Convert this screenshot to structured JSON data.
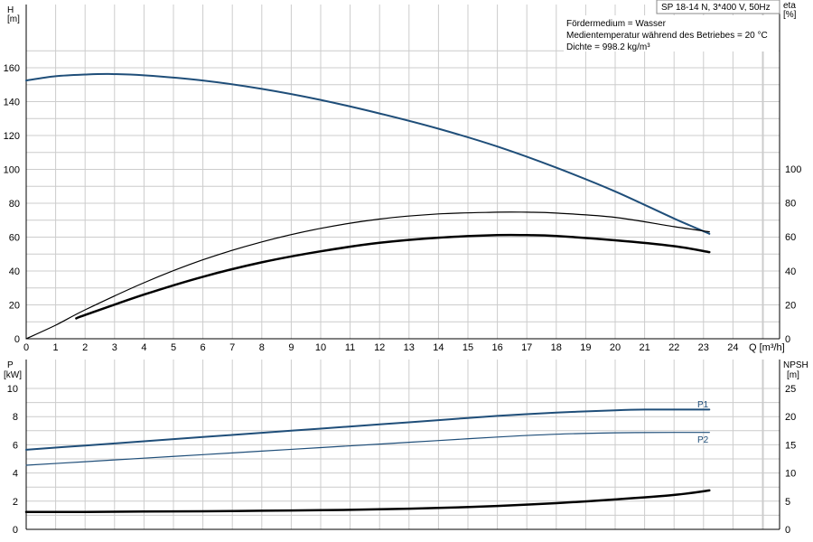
{
  "header": {
    "pump_title": "SP 18-14 N, 3*400 V, 50Hz",
    "info_lines": [
      "Fördermedium = Wasser",
      "Medientemperatur während des Betriebes = 20 °C",
      "Dichte = 998.2 kg/m³"
    ]
  },
  "colors": {
    "blue": "#1f4e79",
    "black": "#000000",
    "grid": "#cccccc"
  },
  "chart_data": [
    {
      "type": "line",
      "panel": "top",
      "x_label": "Q [m³/h]",
      "x_ticks": [
        "0",
        "1",
        "2",
        "3",
        "4",
        "5",
        "6",
        "7",
        "8",
        "9",
        "10",
        "11",
        "12",
        "13",
        "14",
        "15",
        "16",
        "17",
        "18",
        "19",
        "20",
        "21",
        "22",
        "23",
        "24"
      ],
      "xlim": [
        0,
        25.0
      ],
      "left_axis": {
        "label_line1": "H",
        "label_line2": "[m]",
        "ylim": [
          0,
          160
        ],
        "ticks": [
          "0",
          "20",
          "40",
          "60",
          "80",
          "100",
          "120",
          "140",
          "160"
        ]
      },
      "right_axis": {
        "label_line1": "eta",
        "label_line2": "[%]",
        "ylim": [
          0,
          100
        ],
        "ticks": [
          "0",
          "20",
          "40",
          "60",
          "80",
          "100"
        ]
      },
      "grid": true,
      "series": [
        {
          "key": "H",
          "axis": "left",
          "color": "#1f4e79",
          "width": 2,
          "x": [
            0,
            1,
            2,
            2.8,
            4,
            6,
            8,
            10,
            12,
            14,
            16,
            18,
            20,
            22,
            23.2
          ],
          "y": [
            152.5,
            155,
            156,
            156.3,
            155.5,
            152.5,
            147.5,
            141,
            133,
            124,
            113.5,
            101,
            87,
            71,
            62
          ]
        },
        {
          "key": "eta_total",
          "axis": "right",
          "color": "#000000",
          "width": 1.2,
          "x": [
            0,
            1,
            2,
            4,
            6,
            8,
            10,
            12,
            14,
            16,
            17,
            18,
            20,
            22,
            23.2
          ],
          "y": [
            0,
            8,
            17,
            33,
            46.5,
            57,
            65,
            70.5,
            73.5,
            74.5,
            74.5,
            74,
            71.5,
            66,
            63
          ]
        },
        {
          "key": "eta_pump",
          "axis": "right",
          "color": "#000000",
          "width": 2.5,
          "x": [
            1.7,
            2,
            4,
            6,
            8,
            10,
            12,
            14,
            16,
            17,
            18,
            20,
            22,
            23.2
          ],
          "y": [
            12,
            14,
            26,
            36.5,
            45,
            51.5,
            56.5,
            59.5,
            61,
            61,
            60.5,
            58,
            54.5,
            51
          ]
        }
      ]
    },
    {
      "type": "line",
      "panel": "bottom",
      "xlim": [
        0,
        25.0
      ],
      "left_axis": {
        "label_line1": "P",
        "label_line2": "[kW]",
        "ylim": [
          0,
          10
        ],
        "ticks": [
          "0",
          "2",
          "4",
          "6",
          "8",
          "10"
        ]
      },
      "right_axis": {
        "label_line1": "NPSH",
        "label_line2": "[m]",
        "ylim": [
          0,
          25
        ],
        "ticks": [
          "0",
          "5",
          "10",
          "15",
          "20",
          "25"
        ]
      },
      "grid": true,
      "series": [
        {
          "key": "P1",
          "name": "P1",
          "axis": "left",
          "color": "#1f4e79",
          "width": 2,
          "x": [
            0,
            2,
            4,
            6,
            8,
            10,
            12,
            14,
            16,
            18,
            20,
            21,
            22,
            23.2
          ],
          "y": [
            5.65,
            5.95,
            6.25,
            6.55,
            6.85,
            7.15,
            7.45,
            7.75,
            8.05,
            8.28,
            8.45,
            8.5,
            8.5,
            8.5
          ]
        },
        {
          "key": "P2",
          "name": "P2",
          "axis": "left",
          "color": "#1f4e79",
          "width": 1.2,
          "x": [
            0,
            2,
            4,
            6,
            8,
            10,
            12,
            14,
            16,
            18,
            20,
            22,
            23.2
          ],
          "y": [
            4.55,
            4.8,
            5.05,
            5.3,
            5.55,
            5.8,
            6.05,
            6.3,
            6.55,
            6.75,
            6.85,
            6.88,
            6.88
          ]
        },
        {
          "key": "NPSH",
          "axis": "right",
          "color": "#000000",
          "width": 2.5,
          "x": [
            0,
            2,
            4,
            6,
            8,
            10,
            12,
            14,
            16,
            18,
            20,
            22,
            23.2
          ],
          "y": [
            3.1,
            3.1,
            3.15,
            3.2,
            3.3,
            3.4,
            3.55,
            3.8,
            4.15,
            4.65,
            5.3,
            6.1,
            6.9
          ]
        }
      ]
    }
  ]
}
